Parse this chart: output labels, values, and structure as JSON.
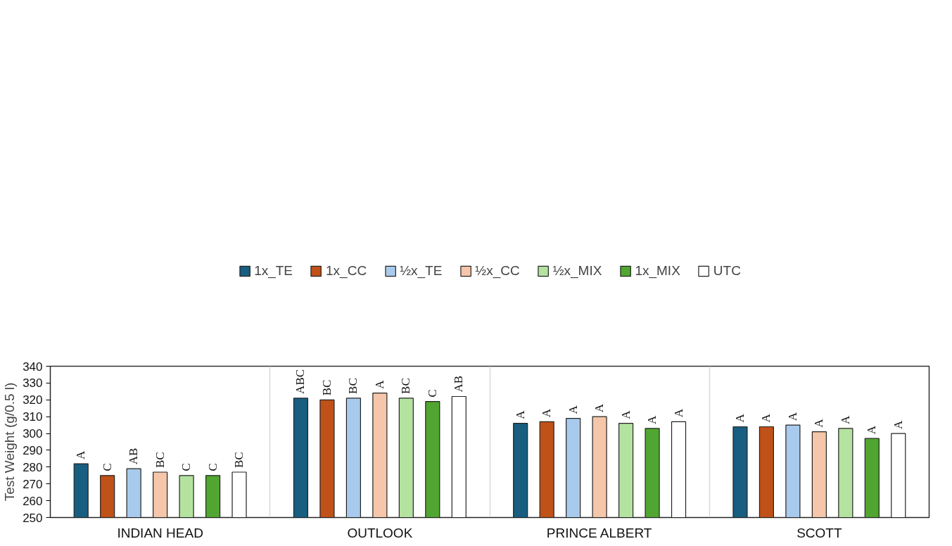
{
  "chart_data": {
    "type": "bar",
    "ylabel": "Test Weight (g/0.5 l)",
    "categories": [
      "INDIAN HEAD",
      "OUTLOOK",
      "PRINCE ALBERT",
      "SCOTT"
    ],
    "ylim": [
      250,
      340
    ],
    "yticks": [
      250,
      260,
      270,
      280,
      290,
      300,
      310,
      320,
      330,
      340
    ],
    "grid": "x",
    "legend": "top",
    "series": [
      {
        "name": "1x_TE",
        "color": "#175e80",
        "values": [
          282,
          321,
          306,
          304
        ],
        "value_labels": [
          "A",
          "ABC",
          "A",
          "A"
        ]
      },
      {
        "name": "1x_CC",
        "color": "#c05118",
        "values": [
          275,
          320,
          307,
          304
        ],
        "value_labels": [
          "C",
          "BC",
          "A",
          "A"
        ]
      },
      {
        "name": "½x_TE",
        "color": "#a8caec",
        "values": [
          279,
          321,
          309,
          305
        ],
        "value_labels": [
          "AB",
          "BC",
          "A",
          "A"
        ]
      },
      {
        "name": "½x_CC",
        "color": "#f5c6a9",
        "values": [
          277,
          324,
          310,
          301
        ],
        "value_labels": [
          "BC",
          "A",
          "A",
          "A"
        ]
      },
      {
        "name": "½x_MIX",
        "color": "#b4e3a0",
        "values": [
          275,
          321,
          306,
          303
        ],
        "value_labels": [
          "C",
          "BC",
          "A",
          "A"
        ]
      },
      {
        "name": "1x_MIX",
        "color": "#50a630",
        "values": [
          275,
          319,
          303,
          297
        ],
        "value_labels": [
          "C",
          "C",
          "A",
          "A"
        ]
      },
      {
        "name": "UTC",
        "color": "#ffffff",
        "values": [
          277,
          322,
          307,
          300
        ],
        "value_labels": [
          "BC",
          "AB",
          "A",
          "A"
        ]
      }
    ]
  }
}
